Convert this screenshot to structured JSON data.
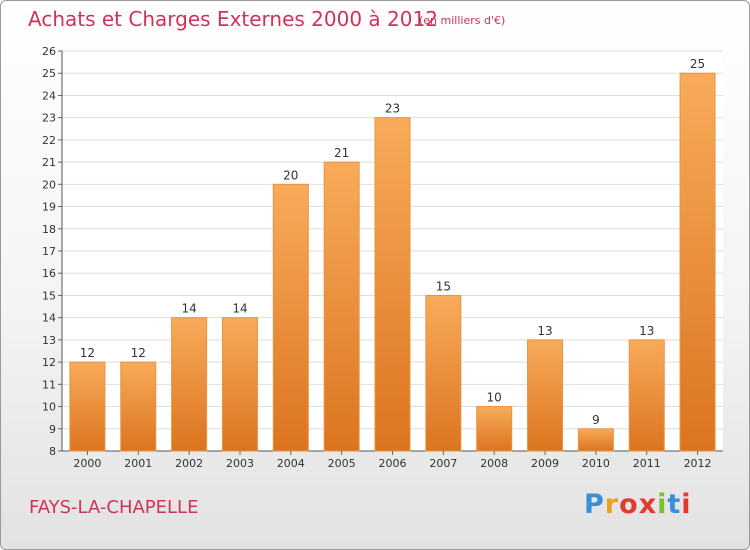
{
  "title": "Achats et Charges Externes 2000 à 2012",
  "subtitle": "(en milliers d'€)",
  "commune": "FAYS-LA-CHAPELLE",
  "logo": {
    "text": "Proxiti",
    "colors": [
      "#3a8fd6",
      "#e8a21f",
      "#e23b2e",
      "#e23b2e",
      "#7cbf2f",
      "#3a8fd6",
      "#e23b2e"
    ]
  },
  "colors": {
    "bar_light": "#f8ab5a",
    "bar_dark": "#db741f",
    "title": "#d0335a"
  },
  "chart_data": {
    "type": "bar",
    "categories": [
      "2000",
      "2001",
      "2002",
      "2003",
      "2004",
      "2005",
      "2006",
      "2007",
      "2008",
      "2009",
      "2010",
      "2011",
      "2012"
    ],
    "values": [
      12,
      12,
      14,
      14,
      20,
      21,
      23,
      15,
      10,
      13,
      9,
      13,
      25
    ],
    "ylim": [
      8,
      26
    ],
    "yticks": [
      8,
      9,
      10,
      11,
      12,
      13,
      14,
      15,
      16,
      17,
      18,
      19,
      20,
      21,
      22,
      23,
      24,
      25,
      26
    ],
    "grid": true
  }
}
